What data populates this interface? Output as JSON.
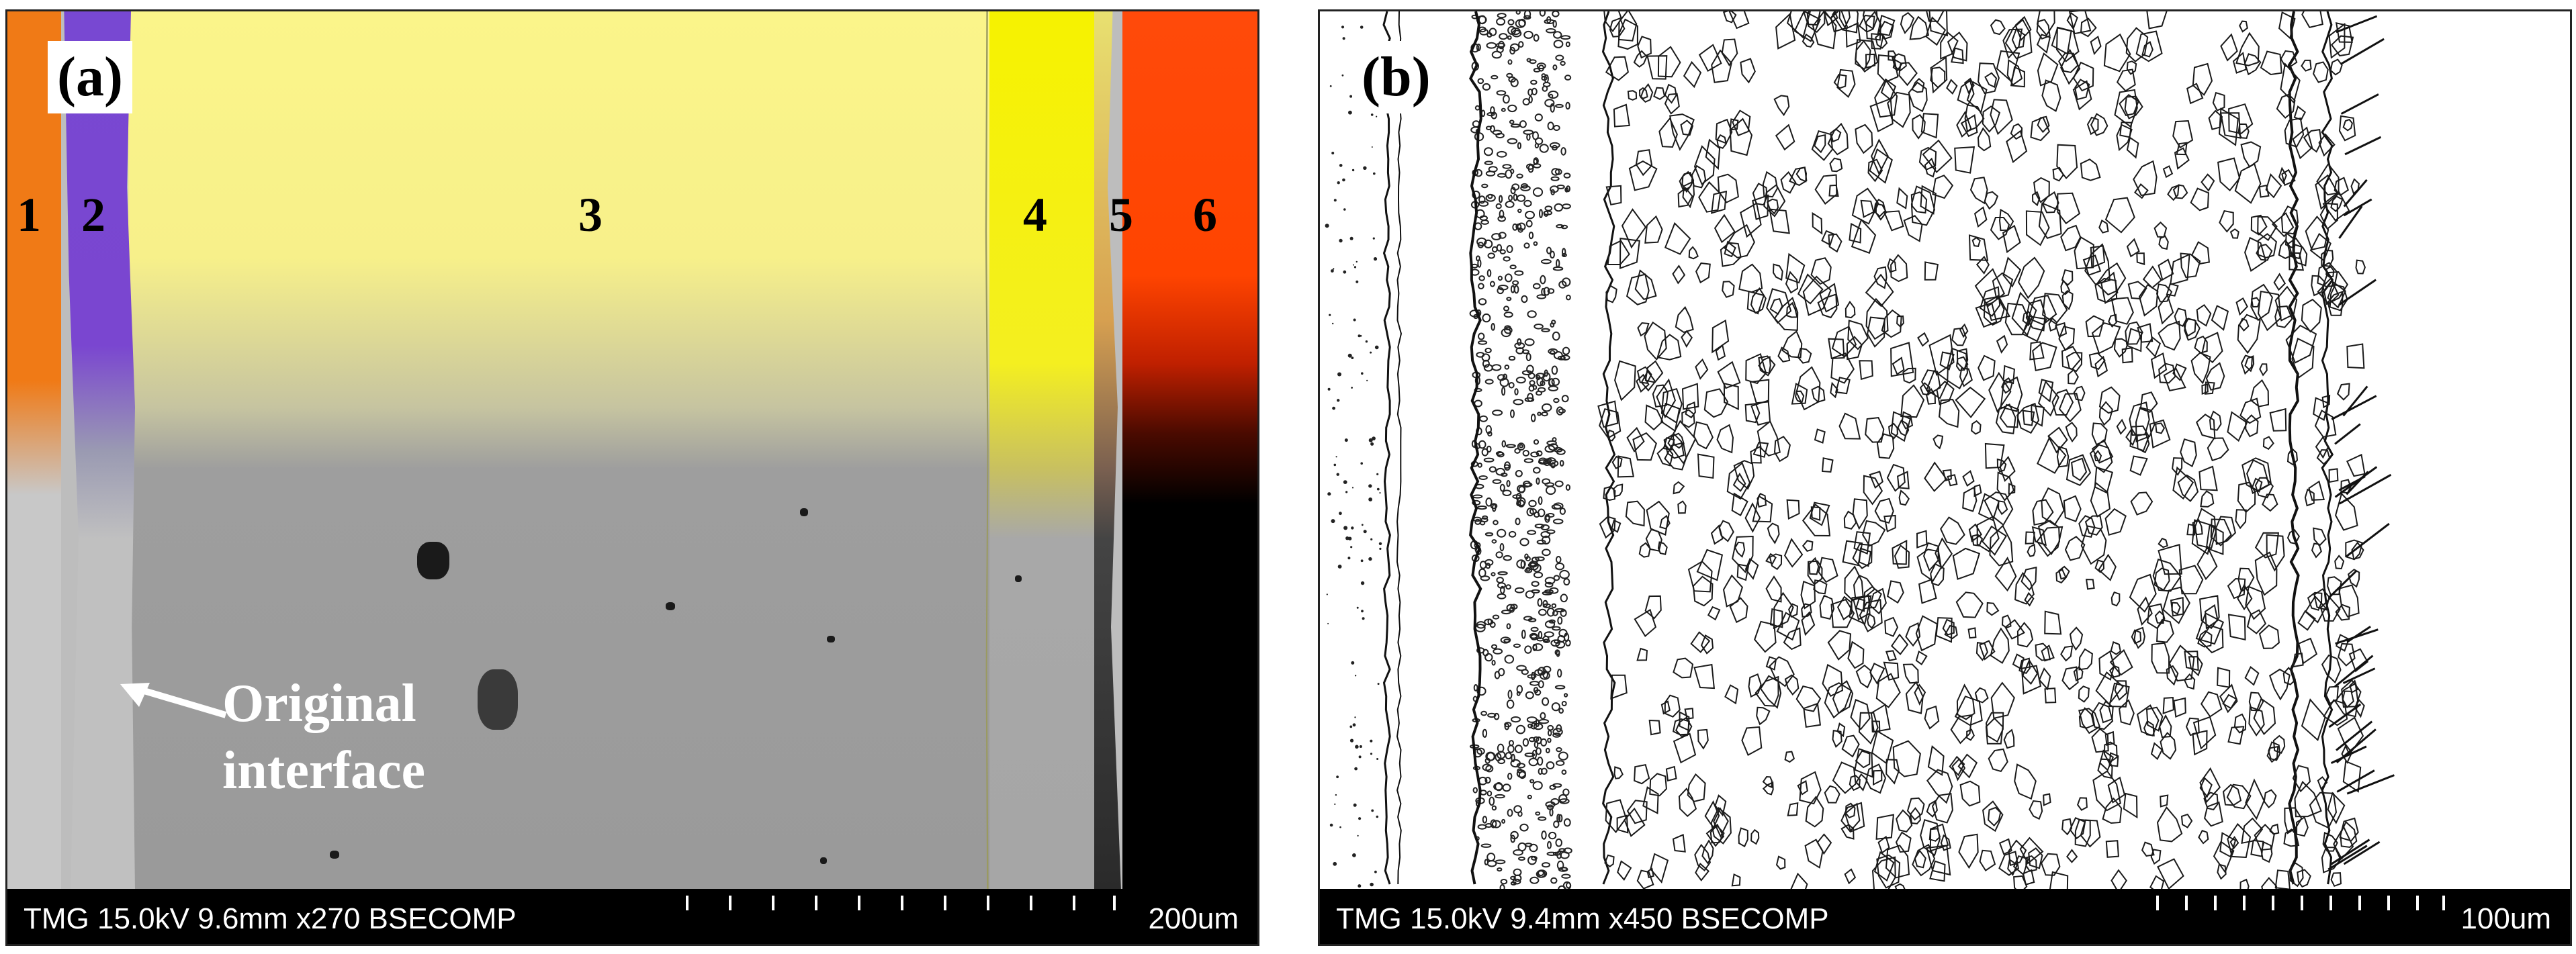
{
  "panel_a": {
    "label": "(a)",
    "layer_numbers": [
      "1",
      "2",
      "3",
      "4",
      "5",
      "6"
    ],
    "annotation_line1": "Original",
    "annotation_line2": "interface",
    "infobar": "TMG 15.0kV 9.6mm x270 BSECOMP",
    "scale": "200um",
    "colors": {
      "layer_1": "#f07a16",
      "layer_2": "#7a46d0",
      "layer_3": "#f7f08a",
      "layer_4": "#f4ef20",
      "layer_6": "#ff4400"
    }
  },
  "panel_b": {
    "label": "(b)",
    "infobar": "TMG 15.0kV 9.4mm x450 BSECOMP",
    "scale": "100um"
  }
}
